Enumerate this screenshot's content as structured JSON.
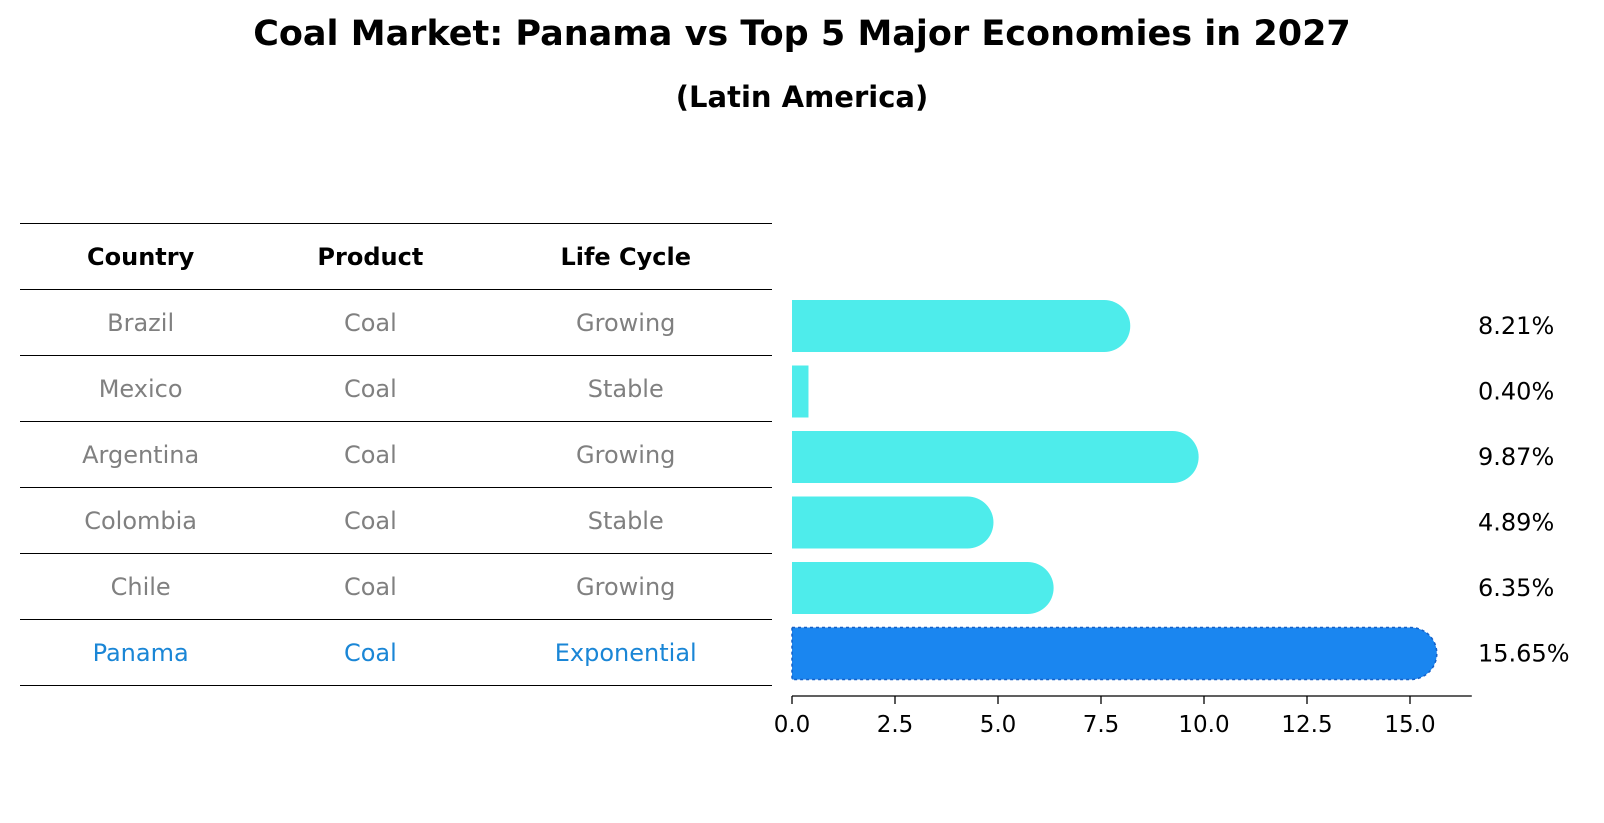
{
  "chart_data": {
    "type": "bar",
    "title": "Coal Market: Panama vs Top 5 Major Economies in 2027",
    "subtitle": "(Latin America)",
    "table": {
      "columns": [
        "Country",
        "Product",
        "Life Cycle"
      ],
      "rows": [
        {
          "country": "Brazil",
          "product": "Coal",
          "life_cycle": "Growing"
        },
        {
          "country": "Mexico",
          "product": "Coal",
          "life_cycle": "Stable"
        },
        {
          "country": "Argentina",
          "product": "Coal",
          "life_cycle": "Growing"
        },
        {
          "country": "Colombia",
          "product": "Coal",
          "life_cycle": "Stable"
        },
        {
          "country": "Chile",
          "product": "Coal",
          "life_cycle": "Growing"
        },
        {
          "country": "Panama",
          "product": "Coal",
          "life_cycle": "Exponential"
        }
      ]
    },
    "categories": [
      "Brazil",
      "Mexico",
      "Argentina",
      "Colombia",
      "Chile",
      "Panama"
    ],
    "values": [
      8.21,
      0.4,
      9.87,
      4.89,
      6.35,
      15.65
    ],
    "labels": [
      "8.21%",
      "0.40%",
      "9.87%",
      "4.89%",
      "6.35%",
      "15.65%"
    ],
    "highlight": "Panama",
    "xlim": [
      0,
      16.5
    ],
    "xticks": [
      0.0,
      2.5,
      5.0,
      7.5,
      10.0,
      12.5,
      15.0
    ],
    "xtick_labels": [
      "0.0",
      "2.5",
      "5.0",
      "7.5",
      "10.0",
      "12.5",
      "15.0"
    ],
    "colors": {
      "bar": "#4eeceb",
      "highlight_bar": "#1a86f0",
      "highlight_text": "#1a86d6",
      "muted_text": "#808080"
    }
  }
}
